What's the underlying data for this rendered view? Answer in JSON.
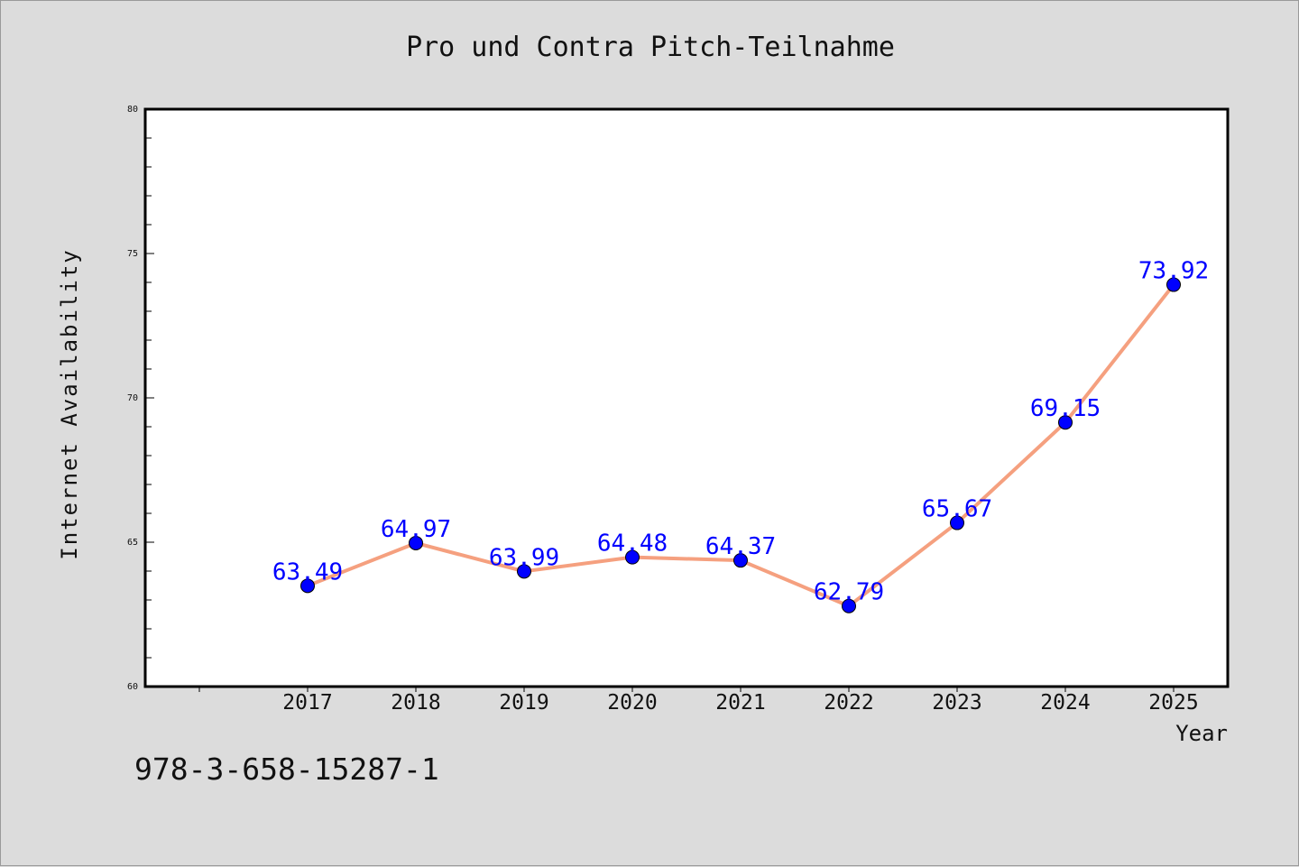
{
  "chart_data": {
    "type": "line",
    "title": "Pro und Contra Pitch-Teilnahme",
    "xlabel": "Year",
    "ylabel": "Internet Availability",
    "categories": [
      "2017",
      "2018",
      "2019",
      "2020",
      "2021",
      "2022",
      "2023",
      "2024",
      "2025"
    ],
    "series": [
      {
        "values": [
          63.49,
          64.97,
          63.99,
          64.48,
          64.37,
          62.79,
          65.67,
          69.15,
          73.92
        ],
        "labels": [
          "63.49",
          "64.97",
          "63.99",
          "64.48",
          "64.37",
          "62.79",
          "65.67",
          "69.15",
          "73.92"
        ],
        "line_color": "#f5a07f",
        "marker_color": "#0000ff",
        "label_color": "#0000ff"
      }
    ],
    "ylim": [
      60,
      80
    ],
    "yticks": [
      "60",
      "65",
      "70",
      "75",
      "80"
    ],
    "grid": false,
    "legend": "none"
  },
  "footer": {
    "code": "978-3-658-15287-1"
  }
}
